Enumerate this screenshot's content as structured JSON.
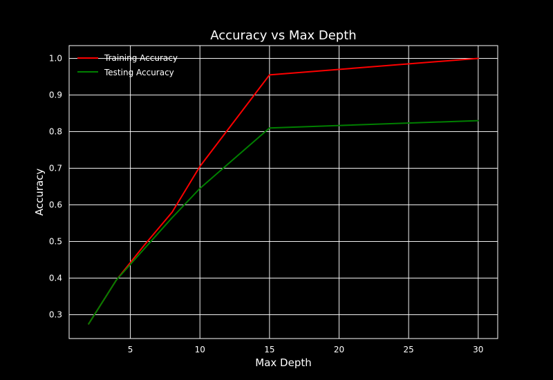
{
  "chart_data": {
    "type": "line",
    "title": "Accuracy vs Max Depth",
    "xlabel": "Max Depth",
    "ylabel": "Accuracy",
    "xlim": [
      0.6,
      31.4
    ],
    "ylim": [
      0.235,
      1.035
    ],
    "xticks": [
      5,
      10,
      15,
      20,
      25,
      30
    ],
    "yticks": [
      0.3,
      0.4,
      0.5,
      0.6,
      0.7,
      0.8,
      0.9,
      1.0
    ],
    "ytick_labels": [
      "0.3",
      "0.4",
      "0.5",
      "0.6",
      "0.7",
      "0.8",
      "0.9",
      "1.0"
    ],
    "grid": true,
    "legend_position": "upper-left",
    "background": "#000000",
    "foreground": "#ffffff",
    "series": [
      {
        "name": "Training Accuracy",
        "color": "#ff0000",
        "x": [
          2,
          4,
          6,
          8,
          10,
          15,
          30
        ],
        "y": [
          0.275,
          0.395,
          0.49,
          0.58,
          0.705,
          0.955,
          1.0
        ]
      },
      {
        "name": "Testing Accuracy",
        "color": "#008000",
        "x": [
          2,
          4,
          6,
          8,
          10,
          15,
          30
        ],
        "y": [
          0.275,
          0.395,
          0.48,
          0.565,
          0.645,
          0.81,
          0.83
        ]
      }
    ]
  }
}
